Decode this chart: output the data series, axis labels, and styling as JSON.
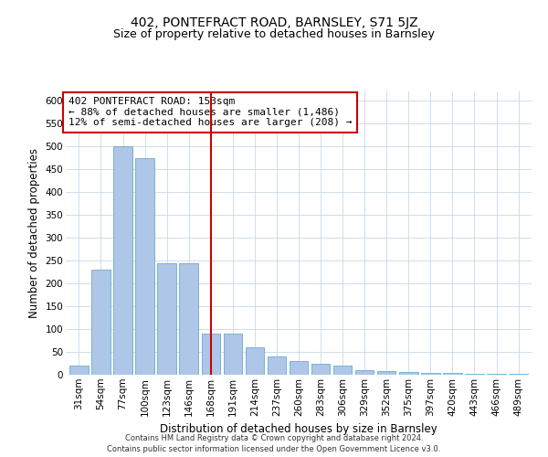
{
  "title": "402, PONTEFRACT ROAD, BARNSLEY, S71 5JZ",
  "subtitle": "Size of property relative to detached houses in Barnsley",
  "xlabel": "Distribution of detached houses by size in Barnsley",
  "ylabel": "Number of detached properties",
  "categories": [
    "31sqm",
    "54sqm",
    "77sqm",
    "100sqm",
    "123sqm",
    "146sqm",
    "168sqm",
    "191sqm",
    "214sqm",
    "237sqm",
    "260sqm",
    "283sqm",
    "306sqm",
    "329sqm",
    "352sqm",
    "375sqm",
    "397sqm",
    "420sqm",
    "443sqm",
    "466sqm",
    "489sqm"
  ],
  "values": [
    20,
    230,
    500,
    475,
    245,
    245,
    90,
    90,
    60,
    40,
    30,
    25,
    20,
    10,
    8,
    6,
    5,
    5,
    3,
    2,
    2
  ],
  "bar_color": "#aec6e8",
  "bar_edge_color": "#6baad0",
  "vline_x_index": 6.0,
  "vline_color": "#cc0000",
  "ylim": [
    0,
    620
  ],
  "yticks": [
    0,
    50,
    100,
    150,
    200,
    250,
    300,
    350,
    400,
    450,
    500,
    550,
    600
  ],
  "annotation_text": "402 PONTEFRACT ROAD: 153sqm\n← 88% of detached houses are smaller (1,486)\n12% of semi-detached houses are larger (208) →",
  "annotation_box_color": "#ffffff",
  "annotation_box_edge": "#cc0000",
  "footer_line1": "Contains HM Land Registry data © Crown copyright and database right 2024.",
  "footer_line2": "Contains public sector information licensed under the Open Government Licence v3.0.",
  "bg_color": "#ffffff",
  "grid_color": "#c8d8e8",
  "title_fontsize": 10,
  "subtitle_fontsize": 9,
  "axis_label_fontsize": 8.5,
  "tick_fontsize": 7.5,
  "annotation_fontsize": 8,
  "footer_fontsize": 6
}
